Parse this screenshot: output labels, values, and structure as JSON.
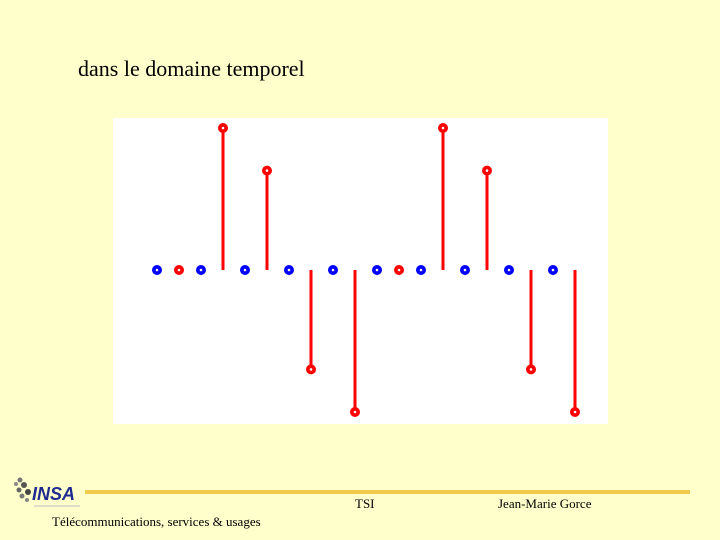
{
  "slide": {
    "title": "dans le domaine temporel"
  },
  "footer": {
    "left_text": "Télécommunications, services & usages",
    "center_text": "TSI",
    "right_text": "Jean-Marie Gorce",
    "logo_text": "INSA",
    "rule_color": "#f2c94c"
  },
  "chart_data": {
    "type": "scatter",
    "title": "",
    "xlabel": "",
    "ylabel": "",
    "xlim": [
      0.5,
      19.5
    ],
    "ylim": [
      -1.2,
      1.2
    ],
    "grid": false,
    "x_axis_visible": false,
    "y_axis_visible": false,
    "series": [
      {
        "color": "#0000ff",
        "stem": false,
        "points": [
          {
            "x": 1,
            "y": 0
          },
          {
            "x": 3,
            "y": 0
          },
          {
            "x": 5,
            "y": 0
          },
          {
            "x": 7,
            "y": 0
          },
          {
            "x": 9,
            "y": 0
          },
          {
            "x": 11,
            "y": 0
          },
          {
            "x": 13,
            "y": 0
          },
          {
            "x": 15,
            "y": 0
          },
          {
            "x": 17,
            "y": 0
          },
          {
            "x": 19,
            "y": 0
          }
        ]
      },
      {
        "color": "#ff0000",
        "stem": true,
        "points": [
          {
            "x": 2,
            "y": 0
          },
          {
            "x": 4,
            "y": 1
          },
          {
            "x": 6,
            "y": 0.7
          },
          {
            "x": 8,
            "y": -0.7
          },
          {
            "x": 10,
            "y": -1
          },
          {
            "x": 12,
            "y": 0
          },
          {
            "x": 14,
            "y": 1
          },
          {
            "x": 16,
            "y": 0.7
          },
          {
            "x": 18,
            "y": -0.7
          },
          {
            "x": 20,
            "y": -1
          }
        ]
      }
    ]
  }
}
